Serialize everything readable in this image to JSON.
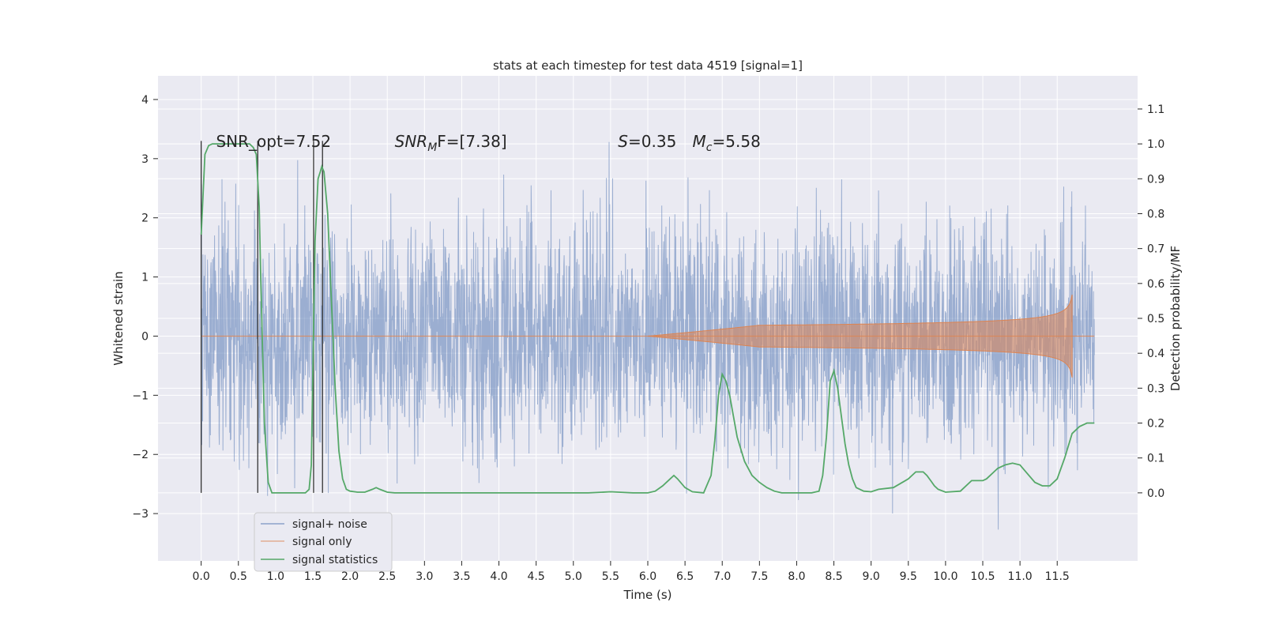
{
  "chart_data": {
    "type": "line",
    "title": "stats at each timestep for test data 4519 [signal=1]",
    "xlabel": "Time (s)",
    "ylabel": "Whitened strain",
    "y2label": "Detection probability/MF",
    "xlim": [
      -0.58,
      12.58
    ],
    "ylim": [
      -3.8,
      4.4
    ],
    "y2lim": [
      -0.195,
      1.195
    ],
    "x_ticks": [
      0.0,
      0.5,
      1.0,
      1.5,
      2.0,
      2.5,
      3.0,
      3.5,
      4.0,
      4.5,
      5.0,
      5.5,
      6.0,
      6.5,
      7.0,
      7.5,
      8.0,
      8.5,
      9.0,
      9.5,
      10.0,
      10.5,
      11.0,
      11.5
    ],
    "x_tick_labels": [
      "0.0",
      "0.5",
      "1.0",
      "1.5",
      "2.0",
      "2.5",
      "3.0",
      "3.5",
      "4.0",
      "4.5",
      "5.0",
      "5.5",
      "6.0",
      "6.5",
      "7.0",
      "7.5",
      "8.0",
      "8.5",
      "9.0",
      "9.5",
      "10.0",
      "10.5",
      "11.0",
      "11.5"
    ],
    "y_ticks": [
      -3,
      -2,
      -1,
      0,
      1,
      2,
      3,
      4
    ],
    "y_tick_labels": [
      "−3",
      "−2",
      "−1",
      "0",
      "1",
      "2",
      "3",
      "4"
    ],
    "y2_ticks": [
      0.0,
      0.1,
      0.2,
      0.3,
      0.4,
      0.5,
      0.6,
      0.7,
      0.8,
      0.9,
      1.0,
      1.1
    ],
    "y2_tick_labels": [
      "0.0",
      "0.1",
      "0.2",
      "0.3",
      "0.4",
      "0.5",
      "0.6",
      "0.7",
      "0.8",
      "0.9",
      "1.0",
      "1.1"
    ],
    "grid": true,
    "legend_position": "bottom-left",
    "colors": {
      "noise": "#4c72b0",
      "signal": "#dd8452",
      "stat": "#55a868",
      "background": "#eaeaf2",
      "grid": "#ffffff",
      "vline": "#333333"
    },
    "annotations": [
      {
        "x": 0.2,
        "y": 3.2,
        "text": "SNR_opt=7.52"
      },
      {
        "x": 2.6,
        "y": 3.2,
        "text": "SNR",
        "sub": "M",
        "rest": "F=[7.38]"
      },
      {
        "x": 5.6,
        "y": 3.2,
        "text": "S",
        "rest": "=0.35"
      },
      {
        "x": 6.6,
        "y": 3.2,
        "text": "M",
        "sub": "c",
        "rest": "=5.58"
      }
    ],
    "vertical_lines": [
      0.0,
      0.76,
      1.51,
      1.63
    ],
    "vertical_line_range": [
      -2.65,
      3.3
    ],
    "series": [
      {
        "name": "signal+ noise",
        "kind": "noise",
        "t_range": [
          0.0,
          12.0
        ],
        "sigma": 1.0
      },
      {
        "name": "signal only",
        "kind": "chirp",
        "t_start": 6.0,
        "t_merge": 11.7,
        "t_end": 12.0,
        "peak_amplitude": 0.7
      },
      {
        "name": "signal statistics",
        "kind": "line",
        "axis": "y2",
        "x": [
          0.0,
          0.05,
          0.1,
          0.15,
          0.2,
          0.3,
          0.4,
          0.5,
          0.6,
          0.65,
          0.7,
          0.74,
          0.78,
          0.8,
          0.85,
          0.9,
          0.95,
          1.0,
          1.1,
          1.2,
          1.3,
          1.4,
          1.45,
          1.48,
          1.5,
          1.53,
          1.57,
          1.6,
          1.62,
          1.65,
          1.7,
          1.75,
          1.8,
          1.85,
          1.9,
          1.95,
          2.0,
          2.1,
          2.2,
          2.3,
          2.35,
          2.4,
          2.5,
          2.6,
          3.0,
          4.0,
          5.0,
          5.2,
          5.5,
          5.8,
          6.0,
          6.1,
          6.2,
          6.3,
          6.35,
          6.4,
          6.5,
          6.6,
          6.75,
          6.85,
          6.9,
          6.95,
          7.0,
          7.05,
          7.1,
          7.2,
          7.3,
          7.4,
          7.5,
          7.6,
          7.7,
          7.8,
          8.0,
          8.2,
          8.3,
          8.35,
          8.4,
          8.45,
          8.5,
          8.55,
          8.6,
          8.65,
          8.7,
          8.75,
          8.8,
          8.9,
          9.0,
          9.1,
          9.3,
          9.5,
          9.6,
          9.7,
          9.75,
          9.8,
          9.85,
          9.9,
          10.0,
          10.2,
          10.35,
          10.45,
          10.5,
          10.55,
          10.6,
          10.65,
          10.7,
          10.8,
          10.9,
          11.0,
          11.1,
          11.2,
          11.3,
          11.4,
          11.5,
          11.6,
          11.7,
          11.8,
          11.9,
          12.0
        ],
        "y": [
          0.74,
          0.97,
          0.995,
          1.0,
          1.0,
          1.0,
          1.0,
          1.0,
          1.0,
          1.0,
          0.99,
          0.97,
          0.82,
          0.62,
          0.2,
          0.03,
          0.0,
          0.0,
          0.0,
          0.0,
          0.0,
          0.0,
          0.01,
          0.08,
          0.35,
          0.72,
          0.9,
          0.92,
          0.935,
          0.92,
          0.8,
          0.55,
          0.3,
          0.12,
          0.04,
          0.01,
          0.005,
          0.002,
          0.002,
          0.01,
          0.015,
          0.01,
          0.002,
          0.0,
          0.0,
          0.0,
          0.0,
          0.0,
          0.003,
          0.0,
          0.0,
          0.005,
          0.02,
          0.04,
          0.05,
          0.04,
          0.015,
          0.003,
          0.0,
          0.05,
          0.15,
          0.28,
          0.34,
          0.32,
          0.28,
          0.16,
          0.09,
          0.05,
          0.03,
          0.015,
          0.005,
          0.0,
          0.0,
          0.0,
          0.005,
          0.05,
          0.16,
          0.32,
          0.35,
          0.3,
          0.22,
          0.14,
          0.08,
          0.04,
          0.015,
          0.005,
          0.003,
          0.01,
          0.015,
          0.04,
          0.06,
          0.06,
          0.05,
          0.035,
          0.02,
          0.01,
          0.002,
          0.005,
          0.035,
          0.035,
          0.035,
          0.04,
          0.05,
          0.06,
          0.07,
          0.08,
          0.085,
          0.08,
          0.055,
          0.03,
          0.02,
          0.02,
          0.04,
          0.1,
          0.17,
          0.19,
          0.2,
          0.2
        ]
      }
    ]
  }
}
